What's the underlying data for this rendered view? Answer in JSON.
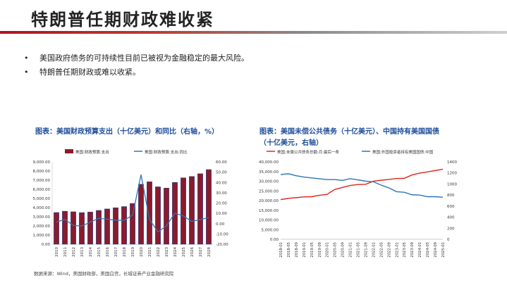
{
  "page": {
    "title": "特朗普任期财政难收紧",
    "bullets": [
      "美国政府债务的可持续性目前已被视为金融稳定的最大风险。",
      "特朗普任期财政或难以收紧。"
    ],
    "bullet_mark": "•",
    "source": "数据来源：Wind，美国财政部，美国白宫，长城证券产业金融研究院"
  },
  "colors": {
    "accent_red": "#b3121f",
    "bar_fill": "#8b1a2b",
    "line_blue": "#2e75b6",
    "line_red": "#e0251b",
    "title_blue": "#1f4e9a"
  },
  "chart_data": [
    {
      "type": "bar",
      "title": "图表：美国财政预算支出（十亿美元）和同比（右轴，%）",
      "categories": [
        "2010",
        "2011",
        "2012",
        "2013",
        "2014",
        "2015",
        "2016",
        "2017",
        "2018",
        "2019",
        "2020",
        "2021",
        "2022",
        "2023",
        "2024",
        "2025",
        "2026",
        "2027",
        "2028"
      ],
      "series": [
        {
          "name": "美国:财政预算:支出",
          "kind": "bar",
          "axis": "left",
          "values": [
            3460,
            3600,
            3540,
            3450,
            3510,
            3690,
            3850,
            3980,
            4110,
            4450,
            6550,
            6820,
            6270,
            6130,
            6750,
            7250,
            7400,
            7700,
            8150
          ]
        },
        {
          "name": "美国:财政预算:支出:同比",
          "kind": "line",
          "axis": "right",
          "values": [
            1.5,
            4.0,
            -1.7,
            -2.4,
            1.4,
            5.2,
            4.3,
            3.3,
            3.3,
            8.2,
            47.5,
            4.1,
            -8.1,
            -2.2,
            10.1,
            7.4,
            2.1,
            4.0,
            5.8
          ]
        }
      ],
      "ylim_left": [
        0,
        9000
      ],
      "yticks_left": [
        "0.00",
        "1,000.00",
        "2,000.00",
        "3,000.00",
        "4,000.00",
        "5,000.00",
        "6,000.00",
        "7,000.00",
        "8,000.00",
        "9,000.00"
      ],
      "ylim_right": [
        -20,
        60
      ],
      "yticks_right": [
        "-20.00",
        "-10.00",
        "0.00",
        "10.00",
        "20.00",
        "30.00",
        "40.00",
        "50.00",
        "60.00"
      ],
      "legend": "top"
    },
    {
      "type": "line",
      "title": "图表：美国未偿公共债务（十亿美元）、中国持有美国国债（十亿美元，右轴）",
      "x": [
        "2018-01",
        "2018-05",
        "2018-09",
        "2019-01",
        "2019-05",
        "2019-09",
        "2020-01",
        "2020-05",
        "2020-09",
        "2021-01",
        "2021-05",
        "2021-09",
        "2022-01",
        "2022-05",
        "2022-09",
        "2023-01",
        "2023-05",
        "2023-09",
        "2024-01",
        "2024-05",
        "2024-09",
        "2025-01"
      ],
      "series": [
        {
          "name": "美国:未偿公共债务总额:月:最后一条",
          "axis": "left",
          "values": [
            20500,
            21100,
            21500,
            21900,
            22000,
            22700,
            23200,
            25700,
            26800,
            27800,
            28300,
            28400,
            30000,
            30500,
            30900,
            31400,
            31500,
            33200,
            34200,
            34800,
            35500,
            36200
          ]
        },
        {
          "name": "美国:外国投资者持有美国国债:中国",
          "axis": "right",
          "values": [
            1170,
            1185,
            1150,
            1125,
            1110,
            1095,
            1080,
            1080,
            1065,
            1095,
            1075,
            1050,
            1040,
            980,
            930,
            860,
            850,
            805,
            800,
            770,
            770,
            760
          ]
        }
      ],
      "ylim_left": [
        0,
        40000
      ],
      "yticks_left": [
        "0.00",
        "5,000.00",
        "10,000.00",
        "15,000.00",
        "20,000.00",
        "25,000.00",
        "30,000.00",
        "35,000.00",
        "40,000.00"
      ],
      "ylim_right": [
        0,
        1400
      ],
      "yticks_right": [
        "0",
        "200",
        "400",
        "600",
        "800",
        "1000",
        "1200",
        "1400"
      ],
      "legend": "top"
    }
  ]
}
